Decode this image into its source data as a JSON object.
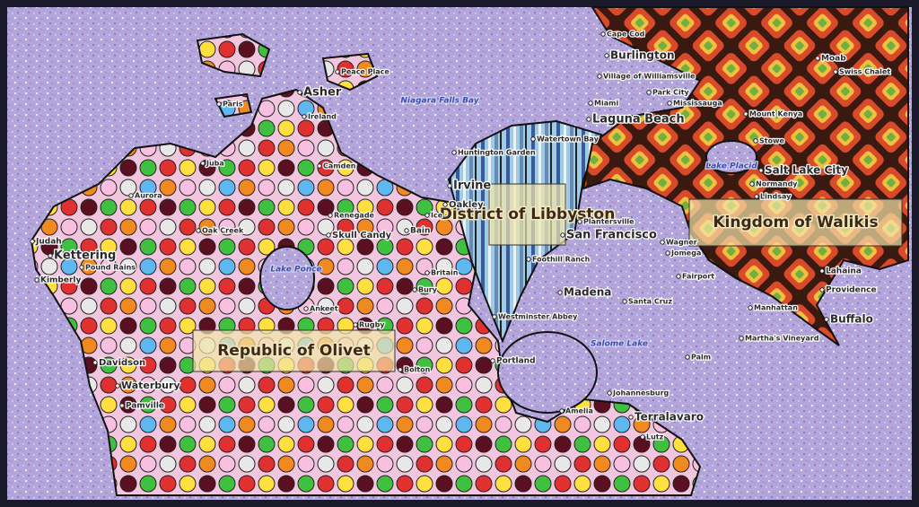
{
  "regions": [
    "Republic of Olivet",
    "District of Libbyston",
    "Kingdom of Walikis"
  ],
  "water": [
    "Niagara Falls Bay",
    "Lake Ponce",
    "Salome Lake",
    "Lake Placid"
  ],
  "places": [
    "Cape Cod",
    "Burlington",
    "Village of Williamsville",
    "Park City",
    "Mississauga",
    "Miami",
    "Laguna Beach",
    "Watertown Bay",
    "Huntington Garden",
    "Irvine",
    "Oakley",
    "Plantersville",
    "San Francisco",
    "Wagner",
    "Jomega",
    "Fairport",
    "Foothill Ranch",
    "Madena",
    "Santa Cruz",
    "Westminster Abbey",
    "Portland",
    "Johannesburg",
    "Amelia",
    "Terralavaro",
    "Lutz",
    "Moab",
    "Swiss Chalet",
    "Mount Kenya",
    "Stowe",
    "Salt Lake City",
    "Normandy",
    "Lindsay",
    "Lahaina",
    "Providence",
    "Manhattan",
    "Buffalo",
    "Martha's Vineyard",
    "Palm",
    "Asher",
    "Peace Place",
    "Paris",
    "Ireland",
    "Juba",
    "Camden",
    "Aurora",
    "Renegade",
    "Skull Candy",
    "Bain",
    "Britain",
    "Oak Creek",
    "Judah",
    "Kettering",
    "Pound Rains",
    "Kimberly",
    "Ankeet",
    "Rugby",
    "Davidson",
    "Waterbury",
    "Pamville",
    "Bolton",
    "Bury",
    "Ice"
  ]
}
